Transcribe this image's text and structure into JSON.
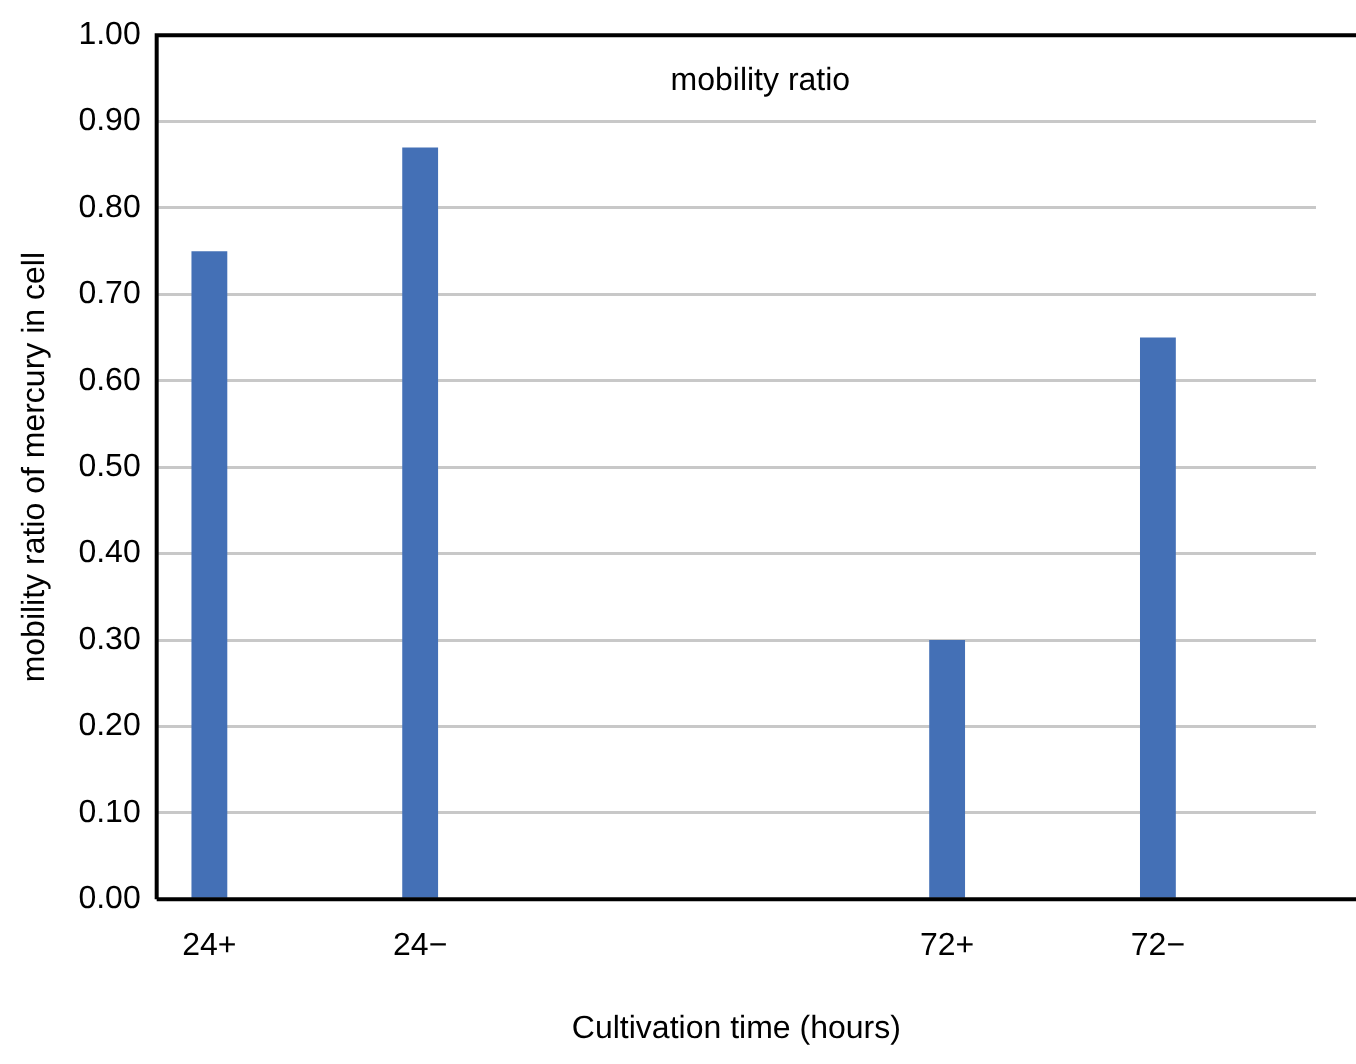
{
  "chart_data": {
    "type": "bar",
    "title": "mobility ratio",
    "xlabel": "Cultivation time (hours)",
    "ylabel": "mobility ratio of mercury in cell",
    "categories": [
      "24+",
      null,
      "24−",
      null,
      null,
      null,
      null,
      "72+",
      null,
      "72−",
      null
    ],
    "values": [
      0.75,
      null,
      0.87,
      null,
      null,
      null,
      null,
      0.3,
      null,
      0.65,
      null
    ],
    "color": "#4470b6",
    "ylim": [
      0,
      1
    ],
    "yticks": [
      {
        "value": 0,
        "label": "0.00"
      },
      {
        "value": 0.1,
        "label": "0.10"
      },
      {
        "value": 0.2,
        "label": "0.20"
      },
      {
        "value": 0.3,
        "label": "0.30"
      },
      {
        "value": 0.4,
        "label": "0.40"
      },
      {
        "value": 0.5,
        "label": "0.50"
      },
      {
        "value": 0.6,
        "label": "0.60"
      },
      {
        "value": 0.7,
        "label": "0.70"
      },
      {
        "value": 0.8,
        "label": "0.80"
      },
      {
        "value": 0.9,
        "label": "0.90"
      },
      {
        "value": 1,
        "label": "1.00"
      }
    ],
    "grid": "y"
  }
}
